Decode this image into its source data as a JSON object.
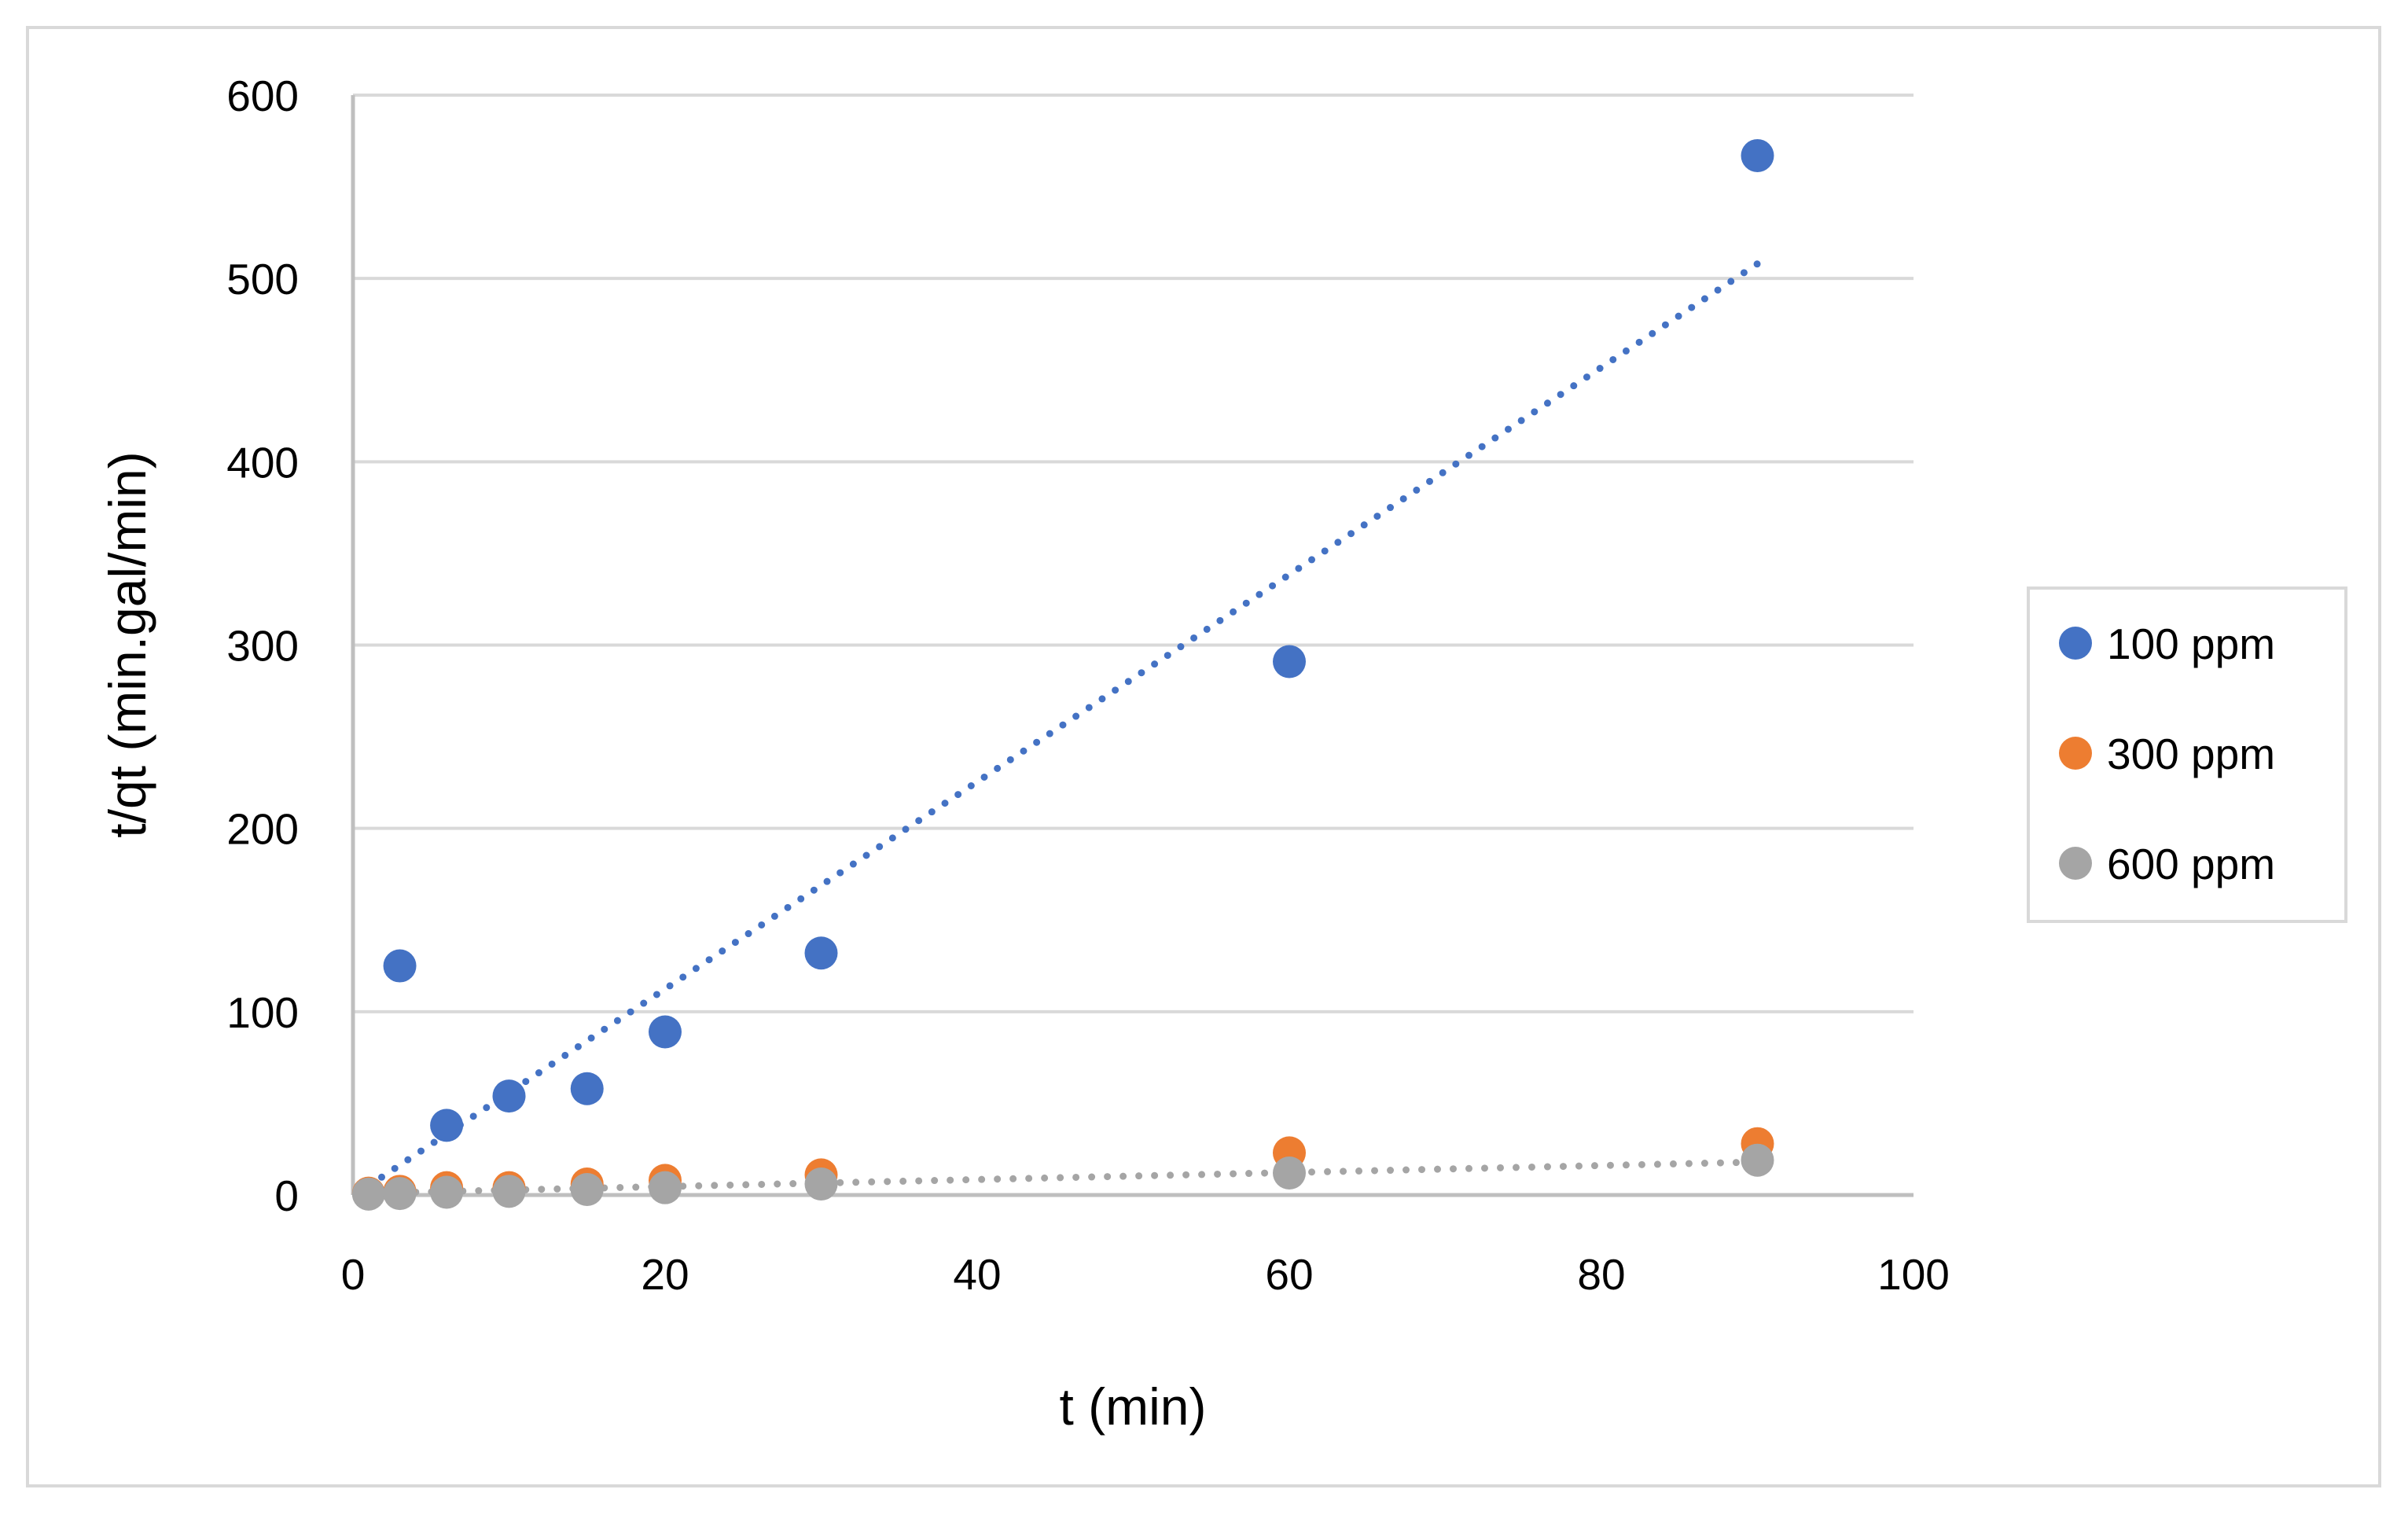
{
  "chart_data": {
    "type": "scatter",
    "title": "",
    "xlabel": "t (min)",
    "ylabel": "t/qt (min.gal/min)",
    "xlim": [
      0,
      100
    ],
    "ylim": [
      0,
      600
    ],
    "xticks": [
      "0",
      "20",
      "40",
      "60",
      "80",
      "100"
    ],
    "yticks": [
      "0",
      "100",
      "200",
      "300",
      "400",
      "500",
      "600"
    ],
    "grid": "horizontal",
    "legend_position": "right",
    "series": [
      {
        "name": "100 ppm",
        "color": "#4472C4",
        "x": [
          3,
          6,
          10,
          15,
          20,
          30,
          60,
          90
        ],
        "y": [
          125,
          38,
          54,
          58,
          89,
          132,
          291,
          567
        ],
        "trendline": {
          "type": "linear",
          "from": [
            1,
            5
          ],
          "to": [
            90,
            508
          ]
        }
      },
      {
        "name": "300 ppm",
        "color": "#ED7D31",
        "x": [
          1,
          3,
          6,
          10,
          15,
          20,
          30,
          60,
          90
        ],
        "y": [
          1,
          2,
          4,
          4,
          6,
          8,
          11,
          23,
          28
        ]
      },
      {
        "name": "600 ppm",
        "color": "#A5A5A5",
        "x": [
          1,
          3,
          6,
          10,
          15,
          20,
          30,
          60,
          90
        ],
        "y": [
          0.5,
          0.8,
          1.5,
          2,
          3,
          4,
          6,
          12,
          19
        ],
        "trendline": {
          "type": "linear",
          "from": [
            1,
            1
          ],
          "to": [
            90,
            18
          ]
        }
      }
    ]
  }
}
